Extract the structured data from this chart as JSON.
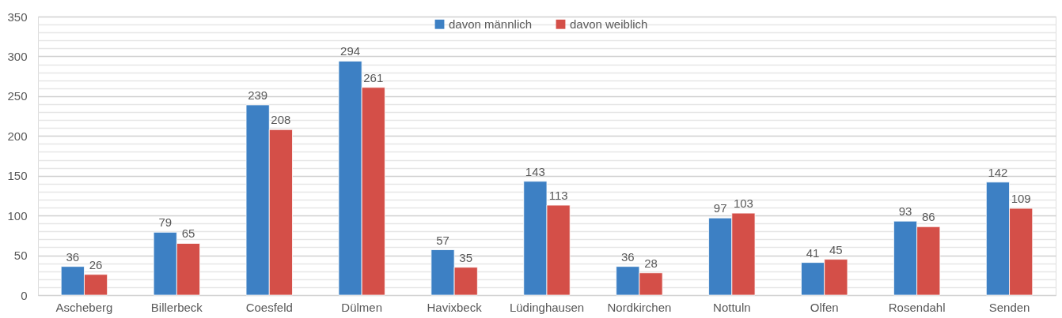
{
  "chart_data": {
    "type": "bar",
    "categories": [
      "Ascheberg",
      "Billerbeck",
      "Coesfeld",
      "Dülmen",
      "Havixbeck",
      "Lüdinghausen",
      "Nordkirchen",
      "Nottuln",
      "Olfen",
      "Rosendahl",
      "Senden"
    ],
    "series": [
      {
        "name": "davon männlich",
        "color": "#3d80c4",
        "values": [
          36,
          79,
          239,
          294,
          57,
          143,
          36,
          97,
          41,
          93,
          142
        ]
      },
      {
        "name": "davon weiblich",
        "color": "#d44f48",
        "values": [
          26,
          65,
          208,
          261,
          35,
          113,
          28,
          103,
          45,
          86,
          109
        ]
      }
    ],
    "ylim": [
      0,
      350
    ],
    "yticks": [
      0,
      {
        "value": 10,
        "label": null
      },
      {
        "value": 20,
        "label": null
      },
      {
        "value": 30,
        "label": null
      },
      {
        "value": 40,
        "label": null
      },
      50,
      {
        "value": 60,
        "label": null
      },
      {
        "value": 70,
        "label": null
      },
      {
        "value": 80,
        "label": null
      },
      {
        "value": 90,
        "label": null
      },
      100,
      {
        "value": 110,
        "label": null
      },
      {
        "value": 120,
        "label": null
      },
      {
        "value": 130,
        "label": null
      },
      {
        "value": 140,
        "label": null
      },
      150,
      {
        "value": 160,
        "label": null
      },
      {
        "value": 170,
        "label": null
      },
      {
        "value": 180,
        "label": null
      },
      {
        "value": 190,
        "label": null
      },
      200,
      {
        "value": 210,
        "label": null
      },
      {
        "value": 220,
        "label": null
      },
      {
        "value": 230,
        "label": null
      },
      {
        "value": 240,
        "label": null
      },
      250,
      {
        "value": 260,
        "label": null
      },
      {
        "value": 270,
        "label": null
      },
      {
        "value": 280,
        "label": null
      },
      {
        "value": 290,
        "label": null
      },
      300,
      {
        "value": 310,
        "label": null
      },
      {
        "value": 320,
        "label": null
      },
      {
        "value": 330,
        "label": null
      },
      {
        "value": 340,
        "label": null
      },
      350
    ],
    "grid": "y",
    "legend": "top",
    "data_labels": true
  }
}
